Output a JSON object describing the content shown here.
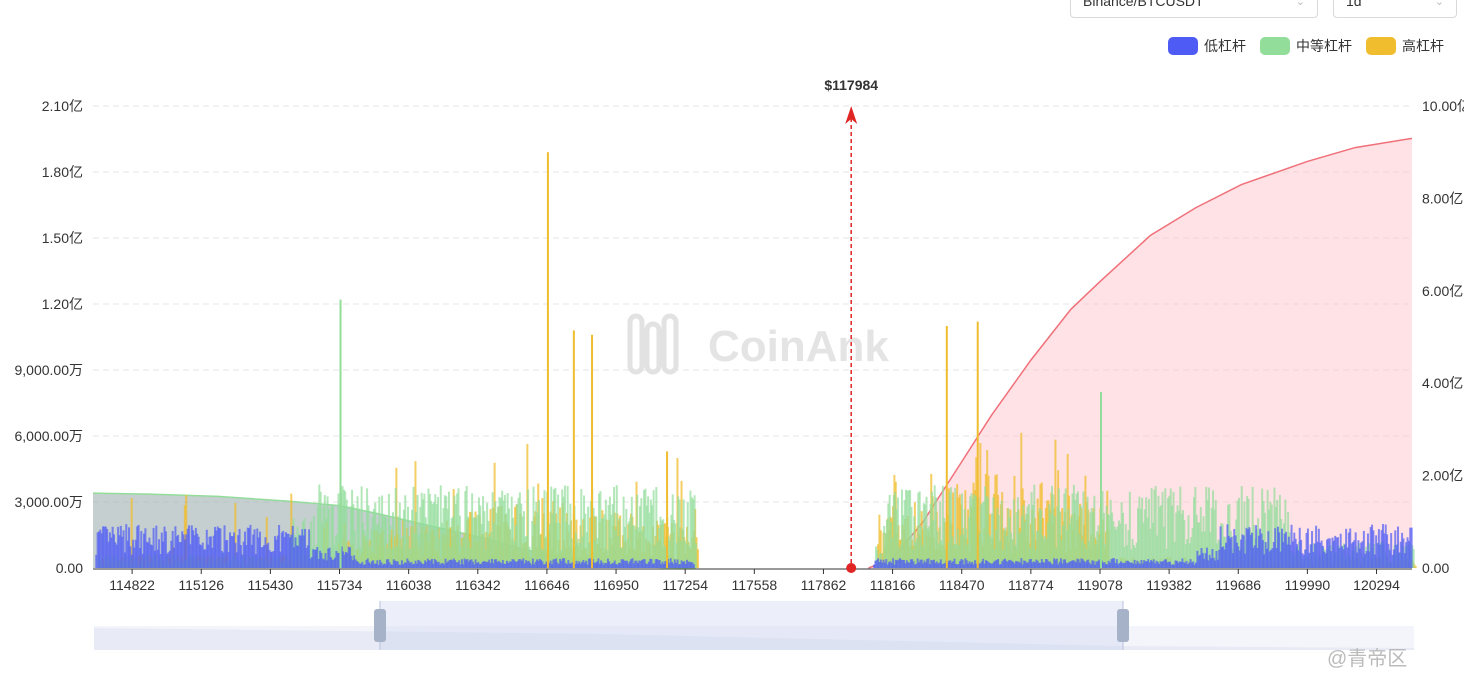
{
  "controls": {
    "pair_select": "Binance/BTCUSDT",
    "range_select": "1d"
  },
  "watermark_text": "@青帝区",
  "colors": {
    "low": "#4f5bf5",
    "mid": "#93dd9b",
    "high": "#f0bd2e",
    "cum_left": "#a9b6b6",
    "cum_right": "#f0707a",
    "price_marker": "#e02525"
  },
  "chart_data": {
    "type": "bar",
    "title": "",
    "xlabel": "",
    "ylabel": "",
    "watermark": "CoinAnk",
    "current_price_label": "$117984",
    "current_price": 117984,
    "legend": [
      {
        "name": "低杠杆",
        "color": "#4f5bf5"
      },
      {
        "name": "中等杠杆",
        "color": "#93dd9b"
      },
      {
        "name": "高杠杆",
        "color": "#f0bd2e"
      }
    ],
    "x_range": [
      114650,
      120450
    ],
    "x_ticks": [
      "114822",
      "115126",
      "115430",
      "115734",
      "116038",
      "116342",
      "116646",
      "116950",
      "117254",
      "117558",
      "117862",
      "118166",
      "118470",
      "118774",
      "119078",
      "119382",
      "119686",
      "119990",
      "120294"
    ],
    "y_left_ticks": [
      "0.00",
      "3,000.00万",
      "6,000.00万",
      "9,000.00万",
      "1.20亿",
      "1.50亿",
      "1.80亿",
      "2.10亿"
    ],
    "y_left_max": 210000000,
    "y_right_ticks": [
      "0.00",
      "2.00亿",
      "4.00亿",
      "6.00亿",
      "8.00亿",
      "10.00亿"
    ],
    "y_right_max": 1000000000,
    "cumulative_left": {
      "x": [
        114650,
        114900,
        115200,
        115500,
        115734,
        115900,
        116100,
        116342,
        116550,
        116750,
        116950,
        117150,
        117300
      ],
      "y": [
        162000000,
        160000000,
        155000000,
        145000000,
        135000000,
        118000000,
        95000000,
        68000000,
        40000000,
        20000000,
        7000000,
        1000000,
        0
      ]
    },
    "cumulative_right": {
      "x": [
        118060,
        118166,
        118300,
        118470,
        118600,
        118774,
        118950,
        119078,
        119300,
        119500,
        119700,
        119990,
        120200,
        120450
      ],
      "y": [
        0,
        20000000,
        100000000,
        230000000,
        330000000,
        450000000,
        560000000,
        620000000,
        720000000,
        780000000,
        830000000,
        880000000,
        910000000,
        930000000
      ]
    },
    "notable_bars": [
      {
        "series": "高杠杆",
        "x": 116646,
        "value": 189000000
      },
      {
        "series": "中等杠杆",
        "x": 115734,
        "value": 122000000
      },
      {
        "series": "高杠杆",
        "x": 116840,
        "value": 106000000
      },
      {
        "series": "高杠杆",
        "x": 116760,
        "value": 108000000
      },
      {
        "series": "高杠杆",
        "x": 118400,
        "value": 110000000
      },
      {
        "series": "高杠杆",
        "x": 118536,
        "value": 112000000
      },
      {
        "series": "高杠杆",
        "x": 117170,
        "value": 53000000
      },
      {
        "series": "中等杠杆",
        "x": 119078,
        "value": 80000000
      }
    ]
  }
}
